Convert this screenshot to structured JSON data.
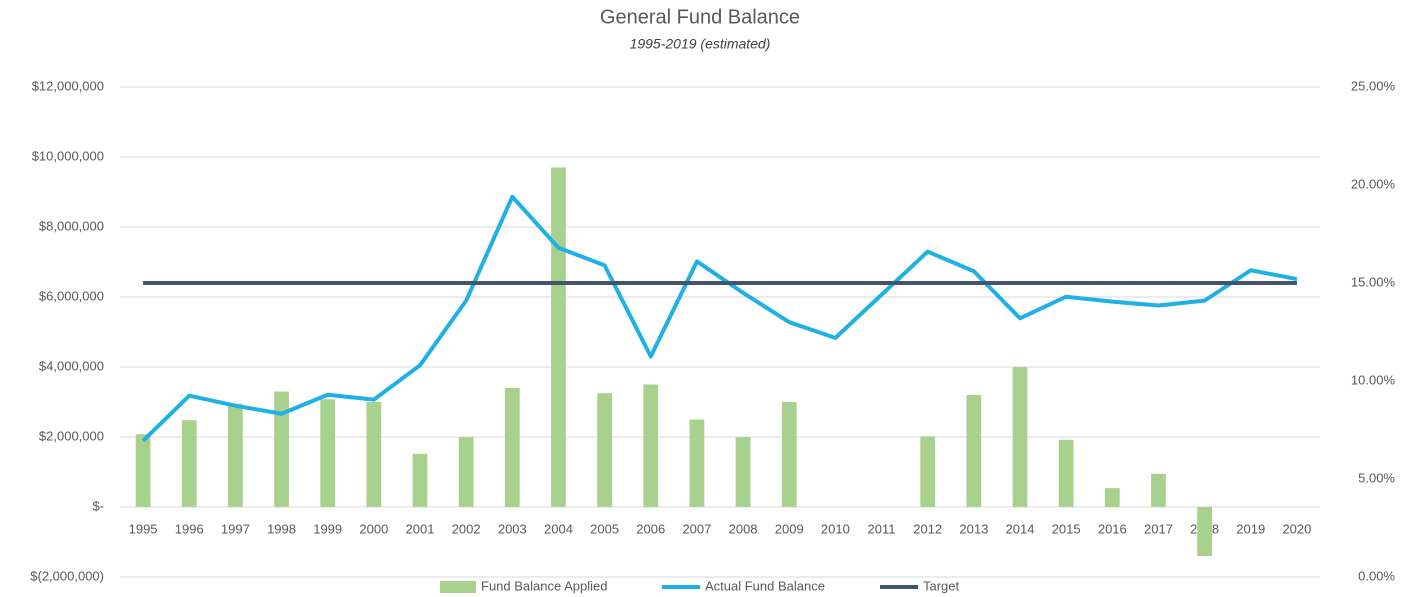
{
  "chart_data": {
    "type": "combo",
    "title": "General Fund Balance",
    "subtitle": "1995-2019 (estimated)",
    "categories": [
      "1995",
      "1996",
      "1997",
      "1998",
      "1999",
      "2000",
      "2001",
      "2002",
      "2003",
      "2004",
      "2005",
      "2006",
      "2007",
      "2008",
      "2009",
      "2010",
      "2011",
      "2012",
      "2013",
      "2014",
      "2015",
      "2016",
      "2017",
      "2018",
      "2019",
      "2020"
    ],
    "series": [
      {
        "name": "Fund Balance Applied",
        "type": "bar",
        "color": "#a9d18e",
        "values": [
          2080000,
          2480000,
          2950000,
          3300000,
          3080000,
          3000000,
          1520000,
          2000000,
          3400000,
          9700000,
          3250000,
          3500000,
          2500000,
          2000000,
          3000000,
          0,
          0,
          2020000,
          3200000,
          4000000,
          1920000,
          540000,
          950000,
          -1400000,
          0,
          0
        ]
      },
      {
        "name": "Actual Fund Balance",
        "type": "line",
        "axis": "y2",
        "color": "#1fb0e6",
        "values": [
          6.95,
          9.25,
          8.74,
          8.33,
          9.3,
          9.05,
          10.8,
          14.1,
          19.4,
          16.8,
          15.9,
          11.25,
          16.1,
          14.5,
          13.0,
          12.2,
          14.4,
          16.6,
          15.6,
          13.2,
          14.3,
          14.05,
          13.85,
          14.1,
          15.65,
          15.2
        ]
      },
      {
        "name": "Target",
        "type": "line",
        "axis": "y2",
        "color": "#44546a",
        "values": [
          15,
          15,
          15,
          15,
          15,
          15,
          15,
          15,
          15,
          15,
          15,
          15,
          15,
          15,
          15,
          15,
          15,
          15,
          15,
          15,
          15,
          15,
          15,
          15,
          15,
          15
        ]
      }
    ],
    "ylim": [
      -2000000,
      12000000
    ],
    "yticks": [
      {
        "value": -2000000,
        "label": "$(2,000,000)"
      },
      {
        "value": 0,
        "label": "$-"
      },
      {
        "value": 2000000,
        "label": "$2,000,000"
      },
      {
        "value": 4000000,
        "label": "$4,000,000"
      },
      {
        "value": 6000000,
        "label": "$6,000,000"
      },
      {
        "value": 8000000,
        "label": "$8,000,000"
      },
      {
        "value": 10000000,
        "label": "$10,000,000"
      },
      {
        "value": 12000000,
        "label": "$12,000,000"
      }
    ],
    "y2lim": [
      0,
      25
    ],
    "y2ticks": [
      {
        "value": 0,
        "label": "0.00%"
      },
      {
        "value": 5,
        "label": "5.00%"
      },
      {
        "value": 10,
        "label": "10.00%"
      },
      {
        "value": 15,
        "label": "15.00%"
      },
      {
        "value": 20,
        "label": "20.00%"
      },
      {
        "value": 25,
        "label": "25.00%"
      }
    ],
    "grid": true,
    "legend": "bottom"
  }
}
